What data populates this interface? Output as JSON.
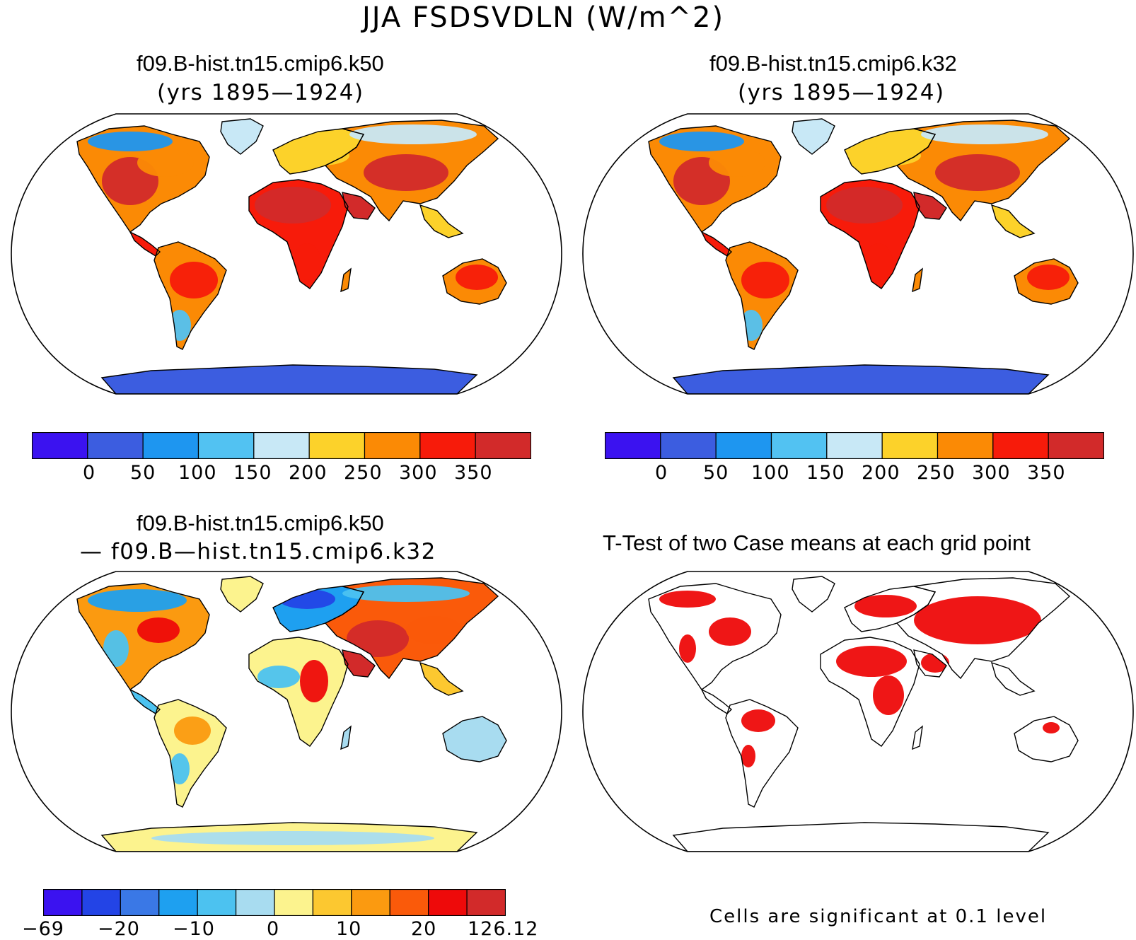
{
  "figure": {
    "title": "JJA FSDSVDLN (W/m^2)",
    "note": "Cells are significant at 0.1 level"
  },
  "panels": {
    "case1": {
      "name": "f09.B-hist.tn15.cmip6.k50",
      "years": "(yrs 1895—1924)"
    },
    "case2": {
      "name": "f09.B-hist.tn15.cmip6.k32",
      "years": "(yrs 1895—1924)"
    },
    "diff": {
      "name": "f09.B-hist.tn15.cmip6.k50",
      "minus": "— f09.B—hist.tn15.cmip6.k32"
    },
    "ttest": {
      "title": "T-Test of two Case means at each grid point"
    }
  },
  "colorbars": {
    "abs": {
      "colors": [
        "#3b12f0",
        "#3c5de0",
        "#1e96f0",
        "#52c2f2",
        "#c8e8f6",
        "#fcd22a",
        "#fb8a05",
        "#f71b0a",
        "#d22a2a"
      ],
      "labels": [
        "0",
        "50",
        "100",
        "150",
        "200",
        "250",
        "300",
        "350"
      ]
    },
    "diff": {
      "colors": [
        "#3b12f0",
        "#2344e6",
        "#3a78e6",
        "#1ea0f0",
        "#4cc2f0",
        "#a8dcf0",
        "#fcf38e",
        "#fcc830",
        "#fb9a10",
        "#fa5a0a",
        "#ee0a0a",
        "#d22a2a"
      ],
      "labels": [
        "−69",
        "−20",
        "−10",
        "0",
        "10",
        "20",
        "126.12"
      ]
    }
  },
  "chart_data": [
    {
      "type": "heatmap",
      "title": "f09.B-hist.tn15.cmip6.k50",
      "subtitle": "(yrs 1895—1924)",
      "variable": "JJA FSDSVDLN (W/m^2)",
      "projection": "Robinson",
      "colorbar_levels": [
        0,
        50,
        100,
        150,
        200,
        250,
        300,
        350
      ],
      "range_description": "Highest values (>350) over Sahara, Arabia, central Asia, US Southwest/Mexico; lowest (<50) over Antarctica"
    },
    {
      "type": "heatmap",
      "title": "f09.B-hist.tn15.cmip6.k32",
      "subtitle": "(yrs 1895—1924)",
      "variable": "JJA FSDSVDLN (W/m^2)",
      "projection": "Robinson",
      "colorbar_levels": [
        0,
        50,
        100,
        150,
        200,
        250,
        300,
        350
      ]
    },
    {
      "type": "heatmap",
      "title": "f09.B-hist.tn15.cmip6.k50 — f09.B—hist.tn15.cmip6.k32",
      "projection": "Robinson",
      "colorbar_labels": [
        "−69",
        "−20",
        "−10",
        "0",
        "10",
        "20",
        "126.12"
      ]
    },
    {
      "type": "heatmap",
      "title": "T-Test of two Case means at each grid point",
      "projection": "Robinson",
      "note": "Cells are significant at 0.1 level",
      "significant_color": "#ee0a0a"
    }
  ]
}
